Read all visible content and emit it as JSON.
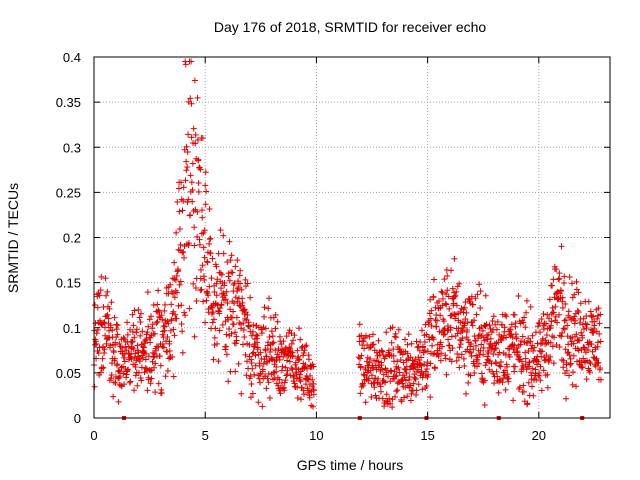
{
  "chart_data": {
    "type": "scatter",
    "title": "Day 176 of 2018, SRMTID for receiver echo",
    "xlabel": "GPS time / hours",
    "ylabel": "SRMTID / TECUs",
    "xlim": [
      0,
      23.2
    ],
    "ylim": [
      0,
      0.4
    ],
    "xticks": [
      0,
      5,
      10,
      15,
      20
    ],
    "xtick_labels": [
      "0",
      "5",
      "10",
      "15",
      "20"
    ],
    "yticks": [
      0,
      0.05,
      0.1,
      0.15,
      0.2,
      0.25,
      0.3,
      0.35,
      0.4
    ],
    "ytick_labels": [
      "0",
      "0.05",
      "0.1",
      "0.15",
      "0.2",
      "0.25",
      "0.3",
      "0.35",
      "0.4"
    ],
    "grid": true,
    "marker": "+",
    "series_color": "#e00000",
    "gaps_hours": [
      [
        9.9,
        11.9
      ]
    ],
    "zero_markers_x": [
      1.35,
      11.95,
      14.95,
      18.2,
      21.95
    ],
    "series": [
      {
        "name": "SRMTID",
        "envelope_x": [
          0.0,
          0.3,
          0.6,
          0.9,
          1.2,
          1.5,
          2.0,
          2.5,
          3.0,
          3.3,
          3.6,
          3.8,
          4.0,
          4.2,
          4.4,
          4.6,
          4.8,
          5.0,
          5.3,
          5.6,
          6.0,
          6.4,
          6.8,
          7.2,
          7.6,
          8.0,
          8.5,
          9.0,
          9.4,
          9.8,
          11.9,
          12.5,
          13.0,
          13.5,
          14.0,
          14.5,
          15.0,
          15.3,
          15.6,
          16.0,
          16.3,
          16.6,
          17.0,
          17.5,
          18.0,
          18.5,
          19.0,
          19.5,
          20.0,
          20.3,
          20.6,
          20.9,
          21.2,
          21.5,
          21.8,
          22.1,
          22.4,
          22.8
        ],
        "envelope_y": [
          0.085,
          0.09,
          0.095,
          0.07,
          0.06,
          0.07,
          0.07,
          0.075,
          0.09,
          0.1,
          0.11,
          0.15,
          0.22,
          0.28,
          0.27,
          0.26,
          0.24,
          0.2,
          0.15,
          0.12,
          0.12,
          0.12,
          0.09,
          0.075,
          0.075,
          0.07,
          0.065,
          0.06,
          0.05,
          0.04,
          0.06,
          0.06,
          0.055,
          0.055,
          0.055,
          0.06,
          0.075,
          0.09,
          0.1,
          0.11,
          0.11,
          0.1,
          0.09,
          0.08,
          0.075,
          0.075,
          0.075,
          0.07,
          0.06,
          0.08,
          0.11,
          0.13,
          0.1,
          0.1,
          0.09,
          0.095,
          0.09,
          0.08
        ],
        "spread": [
          0.03,
          0.03,
          0.03,
          0.025,
          0.02,
          0.02,
          0.02,
          0.025,
          0.03,
          0.03,
          0.03,
          0.05,
          0.07,
          0.08,
          0.07,
          0.07,
          0.06,
          0.05,
          0.04,
          0.035,
          0.035,
          0.035,
          0.03,
          0.025,
          0.025,
          0.025,
          0.02,
          0.02,
          0.02,
          0.015,
          0.02,
          0.02,
          0.02,
          0.02,
          0.02,
          0.02,
          0.025,
          0.03,
          0.03,
          0.03,
          0.03,
          0.03,
          0.03,
          0.025,
          0.025,
          0.025,
          0.025,
          0.025,
          0.02,
          0.025,
          0.03,
          0.035,
          0.03,
          0.03,
          0.025,
          0.025,
          0.025,
          0.025
        ]
      }
    ]
  }
}
